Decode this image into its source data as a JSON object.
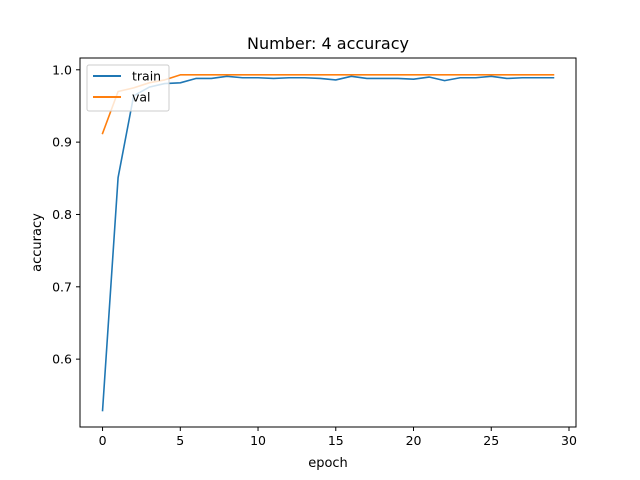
{
  "chart_data": {
    "type": "line",
    "title": "Number: 4 accuracy",
    "xlabel": "epoch",
    "ylabel": "accuracy",
    "xlim": [
      -1.45,
      30.45
    ],
    "ylim": [
      0.5062,
      1.0163
    ],
    "xticks": [
      0,
      5,
      10,
      15,
      20,
      25,
      30
    ],
    "yticks": [
      0.6,
      0.7,
      0.8,
      0.9,
      1.0
    ],
    "ytick_labels": [
      "0.6",
      "0.7",
      "0.8",
      "0.9",
      "1.0"
    ],
    "grid": false,
    "legend_position": "top-left",
    "x": [
      0,
      1,
      2,
      3,
      4,
      5,
      6,
      7,
      8,
      9,
      10,
      11,
      12,
      13,
      14,
      15,
      16,
      17,
      18,
      19,
      20,
      21,
      22,
      23,
      24,
      25,
      26,
      27,
      28,
      29
    ],
    "series": [
      {
        "name": "train",
        "color": "#1f77b4",
        "values": [
          0.529,
          0.851,
          0.964,
          0.976,
          0.981,
          0.982,
          0.988,
          0.988,
          0.991,
          0.989,
          0.989,
          0.988,
          0.989,
          0.989,
          0.988,
          0.986,
          0.991,
          0.988,
          0.988,
          0.988,
          0.987,
          0.99,
          0.985,
          0.989,
          0.989,
          0.991,
          0.988,
          0.989,
          0.989,
          0.989
        ]
      },
      {
        "name": "val",
        "color": "#ff7f0e",
        "values": [
          0.912,
          0.97,
          0.975,
          0.982,
          0.986,
          0.993,
          0.993,
          0.993,
          0.993,
          0.993,
          0.993,
          0.993,
          0.993,
          0.993,
          0.993,
          0.993,
          0.993,
          0.993,
          0.993,
          0.993,
          0.993,
          0.993,
          0.993,
          0.993,
          0.993,
          0.993,
          0.993,
          0.993,
          0.993,
          0.993
        ]
      }
    ]
  }
}
